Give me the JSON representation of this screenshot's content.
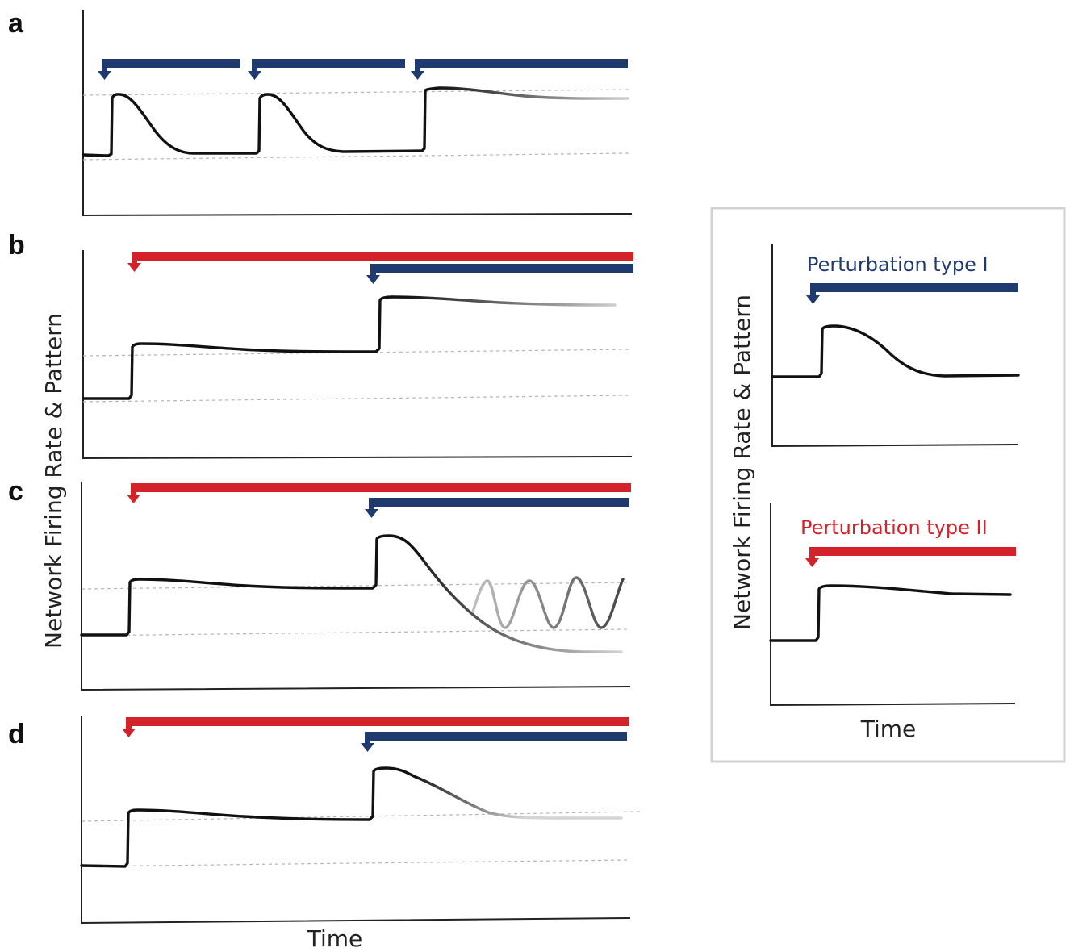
{
  "colors": {
    "type_i": "#1f3a6e",
    "type_ii": "#d4222a",
    "trace": "#111111",
    "trace_fade": "#cfcfcf",
    "axis": "#222222",
    "guide": "#b5b5b5",
    "legend_border": "#d2d2d2"
  },
  "panels": {
    "a": "a",
    "b": "b",
    "c": "c",
    "d": "d"
  },
  "axes": {
    "y_label": "Network Firing Rate & Pattern",
    "x_label": "Time"
  },
  "legend": {
    "type_i": "Perturbation type I",
    "type_ii": "Perturbation type II",
    "y_label": "Network Firing Rate & Pattern",
    "x_label": "Time"
  }
}
